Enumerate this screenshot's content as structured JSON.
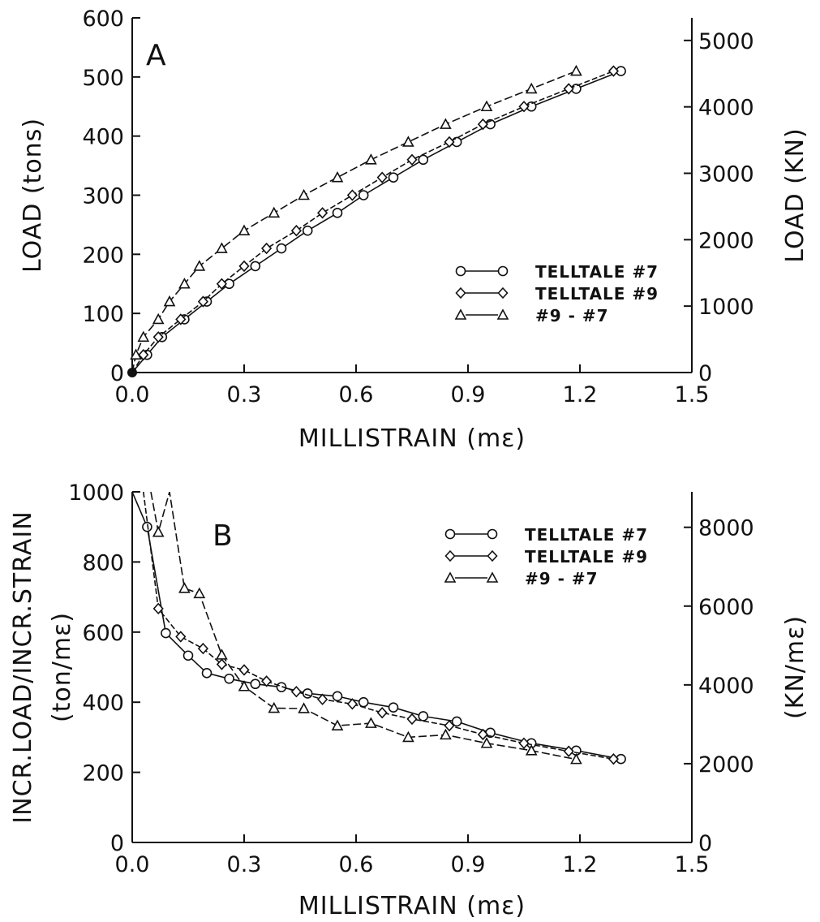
{
  "chart_data": [
    {
      "type": "line",
      "panel_label": "A",
      "xlabel": "MILLISTRAIN  (mε)",
      "ylabel": "LOAD  (tons)",
      "y2label": "LOAD (KN)",
      "xlim": [
        0,
        1.5
      ],
      "ylim": [
        0,
        600
      ],
      "y2lim": [
        0,
        5340
      ],
      "xticks": [
        "0.0",
        "0.3",
        "0.6",
        "0.9",
        "1.2",
        "1.5"
      ],
      "yticks": [
        "0",
        "100",
        "200",
        "300",
        "400",
        "500",
        "600"
      ],
      "y2ticks": [
        "0",
        "1000",
        "2000",
        "3000",
        "4000",
        "5000"
      ],
      "legend_position": "lower-right",
      "grid": false,
      "series": [
        {
          "name": "TELLTALE #7",
          "marker": "circle",
          "points": [
            [
              0.0,
              0
            ],
            [
              0.04,
              30
            ],
            [
              0.08,
              60
            ],
            [
              0.14,
              90
            ],
            [
              0.2,
              120
            ],
            [
              0.26,
              150
            ],
            [
              0.33,
              180
            ],
            [
              0.4,
              210
            ],
            [
              0.47,
              240
            ],
            [
              0.55,
              270
            ],
            [
              0.62,
              300
            ],
            [
              0.7,
              330
            ],
            [
              0.78,
              360
            ],
            [
              0.87,
              390
            ],
            [
              0.96,
              420
            ],
            [
              1.07,
              450
            ],
            [
              1.19,
              480
            ],
            [
              1.31,
              510
            ]
          ]
        },
        {
          "name": "TELLTALE #9",
          "marker": "diamond",
          "points": [
            [
              0.0,
              0
            ],
            [
              0.03,
              30
            ],
            [
              0.07,
              60
            ],
            [
              0.13,
              90
            ],
            [
              0.19,
              120
            ],
            [
              0.24,
              150
            ],
            [
              0.3,
              180
            ],
            [
              0.36,
              210
            ],
            [
              0.44,
              240
            ],
            [
              0.51,
              270
            ],
            [
              0.59,
              300
            ],
            [
              0.67,
              330
            ],
            [
              0.75,
              360
            ],
            [
              0.85,
              390
            ],
            [
              0.94,
              420
            ],
            [
              1.05,
              450
            ],
            [
              1.17,
              480
            ],
            [
              1.29,
              510
            ]
          ]
        },
        {
          "name": "#9 - #7",
          "marker": "triangle",
          "points": [
            [
              0.0,
              0
            ],
            [
              0.01,
              30
            ],
            [
              0.03,
              60
            ],
            [
              0.07,
              90
            ],
            [
              0.1,
              120
            ],
            [
              0.14,
              150
            ],
            [
              0.18,
              180
            ],
            [
              0.24,
              210
            ],
            [
              0.3,
              240
            ],
            [
              0.38,
              270
            ],
            [
              0.46,
              300
            ],
            [
              0.55,
              330
            ],
            [
              0.64,
              360
            ],
            [
              0.74,
              390
            ],
            [
              0.84,
              420
            ],
            [
              0.95,
              450
            ],
            [
              1.07,
              480
            ],
            [
              1.19,
              510
            ]
          ]
        }
      ]
    },
    {
      "type": "line",
      "panel_label": "B",
      "xlabel": "MILLISTRAIN  (mε)",
      "ylabel": "INCR.LOAD/INCR.STRAIN",
      "ylabel2": "(ton/mε)",
      "y2label": "(KN/mε)",
      "xlim": [
        0,
        1.5
      ],
      "ylim": [
        0,
        1000
      ],
      "y2lim": [
        0,
        8900
      ],
      "xticks": [
        "0.0",
        "0.3",
        "0.6",
        "0.9",
        "1.2",
        "1.5"
      ],
      "yticks": [
        "0",
        "200",
        "400",
        "600",
        "800",
        "1000"
      ],
      "y2ticks": [
        "0",
        "2000",
        "4000",
        "6000",
        "8000"
      ],
      "legend_position": "top-right",
      "grid": false,
      "series": [
        {
          "name": "TELLTALE #7",
          "marker": "circle",
          "points": [
            [
              0.0,
              1000
            ],
            [
              0.04,
              900
            ],
            [
              0.09,
              597
            ],
            [
              0.15,
              533
            ],
            [
              0.2,
              483
            ],
            [
              0.26,
              467
            ],
            [
              0.33,
              452
            ],
            [
              0.4,
              443
            ],
            [
              0.47,
              425
            ],
            [
              0.55,
              417
            ],
            [
              0.62,
              400
            ],
            [
              0.7,
              385
            ],
            [
              0.78,
              360
            ],
            [
              0.87,
              345
            ],
            [
              0.96,
              313
            ],
            [
              1.07,
              283
            ],
            [
              1.19,
              262
            ],
            [
              1.31,
              238
            ]
          ]
        },
        {
          "name": "TELLTALE #9",
          "marker": "diamond",
          "points": [
            [
              0.03,
              1000
            ],
            [
              0.07,
              667
            ],
            [
              0.13,
              587
            ],
            [
              0.19,
              553
            ],
            [
              0.24,
              508
            ],
            [
              0.3,
              492
            ],
            [
              0.36,
              460
            ],
            [
              0.44,
              430
            ],
            [
              0.51,
              408
            ],
            [
              0.59,
              395
            ],
            [
              0.67,
              370
            ],
            [
              0.75,
              352
            ],
            [
              0.85,
              333
            ],
            [
              0.94,
              308
            ],
            [
              1.05,
              283
            ],
            [
              1.17,
              260
            ],
            [
              1.29,
              238
            ]
          ]
        },
        {
          "name": "#9 - #7",
          "marker": "triangle",
          "points": [
            [
              0.05,
              1000
            ],
            [
              0.07,
              885
            ],
            [
              0.1,
              1000
            ],
            [
              0.14,
              725
            ],
            [
              0.18,
              710
            ],
            [
              0.24,
              535
            ],
            [
              0.3,
              445
            ],
            [
              0.38,
              383
            ],
            [
              0.46,
              382
            ],
            [
              0.55,
              333
            ],
            [
              0.64,
              340
            ],
            [
              0.74,
              300
            ],
            [
              0.84,
              307
            ],
            [
              0.95,
              283
            ],
            [
              1.07,
              262
            ],
            [
              1.19,
              237
            ]
          ]
        }
      ]
    }
  ]
}
